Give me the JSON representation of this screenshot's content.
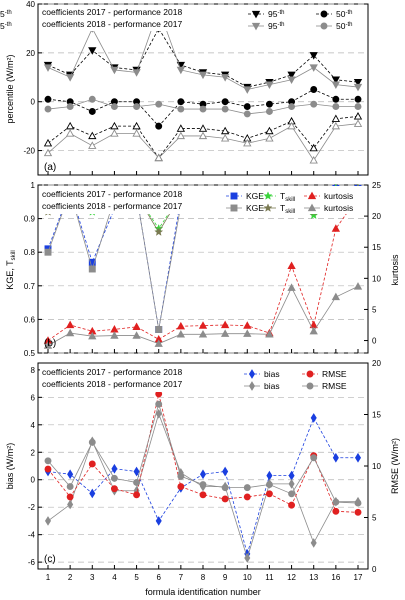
{
  "chart_data": [
    {
      "type": "line",
      "panel_label": "(a)",
      "ylabel": "percentile (W/m²)",
      "ylim": [
        -30,
        40
      ],
      "yticks": [
        -20,
        0,
        20,
        40
      ],
      "x_categories": [
        "1",
        "2",
        "3",
        "4",
        "5",
        "6",
        "7",
        "8",
        "9",
        "10",
        "11",
        "12",
        "13",
        "16",
        "17"
      ],
      "grid": "horizontal dashed",
      "legend_rows": [
        "coefficients 2017 - performance 2018",
        "coefficients 2018 - performance 2017"
      ],
      "series": [
        {
          "name": "95-th",
          "group": "2017-2018",
          "color": "#000000",
          "marker": "triangle-down-filled",
          "line": "dashed",
          "values": [
            15,
            11,
            21,
            14,
            13,
            30,
            15,
            12,
            11,
            6,
            8,
            11,
            19,
            9,
            8
          ]
        },
        {
          "name": "95-th",
          "group": "2018-2017",
          "color": "#8c8c8c",
          "marker": "triangle-down-filled",
          "line": "solid",
          "values": [
            14,
            10,
            30,
            13,
            12,
            38,
            13,
            11,
            10,
            5,
            7,
            9,
            14,
            7,
            6
          ]
        },
        {
          "name": "50-th",
          "group": "2017-2018",
          "color": "#000000",
          "marker": "circle-filled",
          "line": "dashed",
          "values": [
            1,
            0,
            -4,
            0,
            0,
            -10,
            0,
            -1,
            0,
            -2,
            -1,
            0,
            5,
            1,
            1
          ]
        },
        {
          "name": "50-th",
          "group": "2018-2017",
          "color": "#8c8c8c",
          "marker": "circle-filled",
          "line": "solid",
          "values": [
            -3,
            -2,
            1,
            -2,
            -2,
            -1,
            -3,
            -3,
            -3,
            -5,
            -4,
            -2,
            -1,
            -2,
            -2
          ]
        },
        {
          "name": "5-th",
          "group": "2017-2018",
          "color": "#000000",
          "marker": "triangle-up-open",
          "line": "dashed",
          "values": [
            -17,
            -10,
            -14,
            -10,
            -10,
            -23,
            -11,
            -11,
            -12,
            -15,
            -12,
            -8,
            -19,
            -7,
            -6
          ]
        },
        {
          "name": "5-th",
          "group": "2018-2017",
          "color": "#8c8c8c",
          "marker": "triangle-up-open",
          "line": "solid",
          "values": [
            -21,
            -13,
            -18,
            -13,
            -13,
            -23,
            -14,
            -14,
            -15,
            -17,
            -15,
            -10,
            -24,
            -10,
            -9
          ]
        }
      ]
    },
    {
      "type": "line",
      "panel_label": "(b)",
      "ylabel": "KGE, T_skill",
      "ylabel_main": "KGE, T",
      "ylabel_sub": "skill",
      "y2label": "kurtosis",
      "ylim": [
        0.5,
        1.0
      ],
      "yticks": [
        0.5,
        0.6,
        0.7,
        0.8,
        0.9,
        1
      ],
      "y2lim": [
        -2,
        25
      ],
      "y2ticks": [
        0,
        5,
        10,
        15,
        20,
        25
      ],
      "x_categories": [
        "1",
        "2",
        "3",
        "4",
        "5",
        "6",
        "7",
        "8",
        "9",
        "10",
        "11",
        "12",
        "13",
        "16",
        "17"
      ],
      "grid": "horizontal dashed",
      "legend_rows": [
        "coefficients 2017 - performance 2018",
        "coefficients 2018 - performance 2017"
      ],
      "series": [
        {
          "name": "KGE",
          "group": "2017-2018",
          "axis": "left",
          "color": "#1a3fe0",
          "marker": "square-filled",
          "line": "dashed",
          "values": [
            0.81,
            0.985,
            0.77,
            0.93,
            0.97,
            0.57,
            0.96,
            0.985,
            0.985,
            0.98,
            0.98,
            0.985,
            0.94,
            0.99,
            0.99
          ]
        },
        {
          "name": "KGE",
          "group": "2018-2017",
          "axis": "left",
          "color": "#8c8c8c",
          "marker": "square-filled",
          "line": "solid",
          "values": [
            0.8,
            0.98,
            0.75,
            0.96,
            0.97,
            0.57,
            0.94,
            0.98,
            0.975,
            0.97,
            0.97,
            0.98,
            0.93,
            0.985,
            0.985
          ]
        },
        {
          "name": "T_skill",
          "group": "2017-2018",
          "axis": "left",
          "color": "#38d43a",
          "marker": "star",
          "line": "dashed",
          "values": [
            0.93,
            0.97,
            0.92,
            0.96,
            0.97,
            0.87,
            0.97,
            0.975,
            0.97,
            0.97,
            0.975,
            0.975,
            0.91,
            0.99,
            0.99
          ]
        },
        {
          "name": "T_skill",
          "group": "2018-2017",
          "axis": "left",
          "color": "#7a7a52",
          "marker": "star",
          "line": "solid",
          "values": [
            0.92,
            0.98,
            0.93,
            0.95,
            0.97,
            0.86,
            0.97,
            0.97,
            0.97,
            0.965,
            0.97,
            0.97,
            0.92,
            0.985,
            0.99
          ]
        },
        {
          "name": "kurtosis",
          "group": "2017-2018",
          "axis": "right",
          "color": "#e02020",
          "marker": "triangle-up-filled",
          "line": "dashed",
          "values": [
            0,
            2.5,
            1.5,
            1.8,
            2.2,
            0.2,
            2.3,
            2.4,
            2.5,
            2.4,
            1.2,
            12,
            2.5,
            18,
            23
          ]
        },
        {
          "name": "kurtosis",
          "group": "2018-2017",
          "axis": "right",
          "color": "#8c8c8c",
          "marker": "triangle-up-filled",
          "line": "solid",
          "values": [
            -0.8,
            1.2,
            0.7,
            0.8,
            0.8,
            -0.5,
            1.0,
            1.0,
            1.1,
            1.1,
            1.0,
            8.5,
            1.5,
            7.0,
            8.7
          ]
        }
      ]
    },
    {
      "type": "line",
      "panel_label": "(c)",
      "xlabel": "formula identification number",
      "ylabel": "bias (W/m²)",
      "y2label": "RMSE (W/m²)",
      "ylim": [
        -6.5,
        8.5
      ],
      "yticks": [
        -6,
        -4,
        -2,
        0,
        2,
        4,
        6,
        8
      ],
      "y2lim": [
        0,
        20
      ],
      "y2ticks": [
        0,
        5,
        10,
        15,
        20
      ],
      "x_categories": [
        "1",
        "2",
        "3",
        "4",
        "5",
        "6",
        "7",
        "8",
        "9",
        "10",
        "11",
        "12",
        "13",
        "16",
        "17"
      ],
      "grid": "horizontal dashed",
      "legend_rows": [
        "coefficients 2017 - performance 2018",
        "coefficients 2018 - performance 2017"
      ],
      "series": [
        {
          "name": "bias",
          "group": "2017-2018",
          "axis": "left",
          "color": "#1a3fe0",
          "marker": "diamond-filled",
          "line": "dashed",
          "values": [
            0.6,
            0.4,
            -1.0,
            0.8,
            0.6,
            -3.0,
            -0.6,
            0.4,
            0.6,
            -5.4,
            0.3,
            0.3,
            4.5,
            1.6,
            1.6
          ]
        },
        {
          "name": "bias",
          "group": "2018-2017",
          "axis": "left",
          "color": "#8c8c8c",
          "marker": "diamond-filled",
          "line": "solid",
          "values": [
            -3.0,
            -1.8,
            2.8,
            -0.8,
            -0.8,
            4.8,
            0.5,
            -0.5,
            -0.5,
            -5.7,
            -0.3,
            -0.3,
            -4.6,
            -1.6,
            -1.6
          ]
        },
        {
          "name": "RMSE",
          "group": "2017-2018",
          "axis": "right",
          "color": "#e02020",
          "marker": "circle-filled",
          "line": "dashed",
          "values": [
            9.7,
            7.0,
            10.2,
            7.8,
            7.2,
            17.0,
            8.0,
            7.2,
            6.8,
            7.0,
            7.3,
            6.2,
            11.0,
            5.6,
            5.5
          ]
        },
        {
          "name": "RMSE",
          "group": "2018-2017",
          "axis": "right",
          "color": "#8c8c8c",
          "marker": "circle-filled",
          "line": "solid",
          "values": [
            10.5,
            8.0,
            12.3,
            8.8,
            8.4,
            16.0,
            9.0,
            8.2,
            7.9,
            7.9,
            8.2,
            7.3,
            10.8,
            6.5,
            6.4
          ]
        }
      ]
    }
  ]
}
